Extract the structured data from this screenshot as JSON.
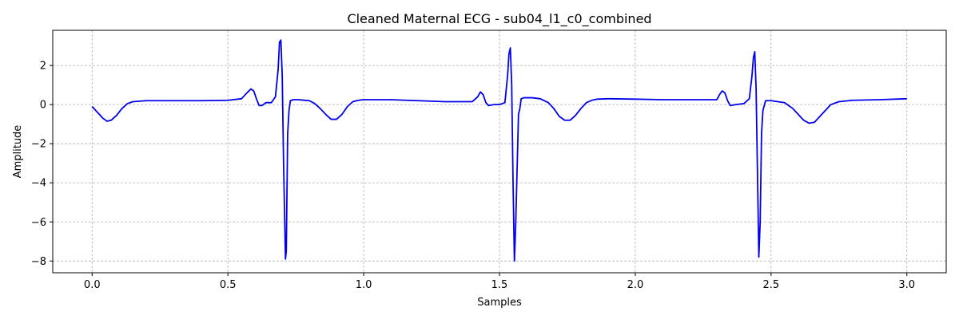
{
  "chart_data": {
    "type": "line",
    "title": "Cleaned Maternal ECG - sub04_l1_c0_combined",
    "xlabel": "Samples",
    "ylabel": "Amplitude",
    "xlim": [
      -0.145,
      3.145
    ],
    "ylim": [
      -8.6,
      3.8
    ],
    "xticks": [
      0.0,
      0.5,
      1.0,
      1.5,
      2.0,
      2.5,
      3.0
    ],
    "xtick_labels": [
      "0.0",
      "0.5",
      "1.0",
      "1.5",
      "2.0",
      "2.5",
      "3.0"
    ],
    "yticks": [
      -8,
      -6,
      -4,
      -2,
      0,
      2
    ],
    "ytick_labels": [
      "−8",
      "−6",
      "−4",
      "−2",
      "0",
      "2"
    ],
    "grid": true,
    "series": [
      {
        "color": "#0000ee",
        "x": [
          0.0,
          0.02,
          0.04,
          0.055,
          0.07,
          0.09,
          0.11,
          0.13,
          0.15,
          0.2,
          0.3,
          0.4,
          0.5,
          0.55,
          0.57,
          0.585,
          0.595,
          0.605,
          0.615,
          0.625,
          0.64,
          0.66,
          0.675,
          0.685,
          0.69,
          0.695,
          0.7,
          0.705,
          0.712,
          0.715,
          0.72,
          0.725,
          0.73,
          0.74,
          0.76,
          0.8,
          0.82,
          0.84,
          0.86,
          0.88,
          0.9,
          0.92,
          0.94,
          0.96,
          0.98,
          1.0,
          1.1,
          1.2,
          1.3,
          1.4,
          1.42,
          1.43,
          1.44,
          1.45,
          1.46,
          1.48,
          1.5,
          1.52,
          1.53,
          1.535,
          1.54,
          1.545,
          1.55,
          1.555,
          1.56,
          1.57,
          1.575,
          1.58,
          1.59,
          1.62,
          1.65,
          1.68,
          1.7,
          1.72,
          1.74,
          1.76,
          1.78,
          1.8,
          1.82,
          1.84,
          1.86,
          1.9,
          2.0,
          2.1,
          2.2,
          2.3,
          2.31,
          2.32,
          2.33,
          2.34,
          2.35,
          2.37,
          2.4,
          2.42,
          2.43,
          2.435,
          2.44,
          2.445,
          2.45,
          2.455,
          2.46,
          2.465,
          2.47,
          2.48,
          2.5,
          2.55,
          2.58,
          2.6,
          2.62,
          2.64,
          2.66,
          2.68,
          2.7,
          2.72,
          2.75,
          2.8,
          2.9,
          3.0
        ],
        "y": [
          -0.1,
          -0.4,
          -0.7,
          -0.85,
          -0.8,
          -0.55,
          -0.2,
          0.05,
          0.15,
          0.2,
          0.2,
          0.2,
          0.22,
          0.3,
          0.6,
          0.8,
          0.7,
          0.3,
          -0.05,
          -0.05,
          0.1,
          0.1,
          0.4,
          1.8,
          3.2,
          3.3,
          1.5,
          -3.0,
          -7.9,
          -7.5,
          -1.5,
          -0.3,
          0.2,
          0.25,
          0.25,
          0.2,
          0.05,
          -0.2,
          -0.5,
          -0.75,
          -0.75,
          -0.5,
          -0.1,
          0.15,
          0.22,
          0.25,
          0.25,
          0.2,
          0.15,
          0.15,
          0.4,
          0.65,
          0.5,
          0.1,
          -0.05,
          0.0,
          0.0,
          0.1,
          1.5,
          2.6,
          2.9,
          1.0,
          -4.0,
          -8.0,
          -6.0,
          -0.5,
          -0.2,
          0.3,
          0.35,
          0.35,
          0.3,
          0.1,
          -0.2,
          -0.6,
          -0.8,
          -0.8,
          -0.55,
          -0.2,
          0.1,
          0.22,
          0.28,
          0.3,
          0.28,
          0.25,
          0.25,
          0.25,
          0.5,
          0.7,
          0.6,
          0.2,
          -0.05,
          0.0,
          0.05,
          0.3,
          1.5,
          2.4,
          2.7,
          0.8,
          -3.5,
          -7.8,
          -6.0,
          -1.5,
          -0.3,
          0.2,
          0.2,
          0.1,
          -0.2,
          -0.5,
          -0.8,
          -0.95,
          -0.9,
          -0.6,
          -0.3,
          0.0,
          0.15,
          0.22,
          0.25,
          0.3
        ]
      }
    ]
  }
}
